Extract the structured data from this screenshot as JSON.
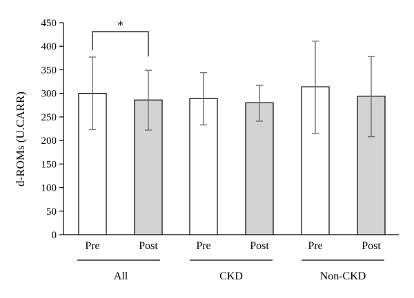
{
  "chart_data": {
    "type": "bar",
    "ylabel": "d-ROMs (U.CARR)",
    "xlabel": "",
    "ylim": [
      0,
      450
    ],
    "yticks": [
      0,
      50,
      100,
      150,
      200,
      250,
      300,
      350,
      400,
      450
    ],
    "grid": false,
    "groups": [
      "All",
      "CKD",
      "Non-CKD"
    ],
    "categories": [
      "Pre",
      "Post"
    ],
    "series": [
      {
        "group": "All",
        "bars": [
          {
            "label": "Pre",
            "value": 300,
            "err_low": 223,
            "err_high": 377,
            "fill": "#ffffff"
          },
          {
            "label": "Post",
            "value": 286,
            "err_low": 222,
            "err_high": 349,
            "fill": "#d3d3d3"
          }
        ]
      },
      {
        "group": "CKD",
        "bars": [
          {
            "label": "Pre",
            "value": 289,
            "err_low": 233,
            "err_high": 344,
            "fill": "#ffffff"
          },
          {
            "label": "Post",
            "value": 280,
            "err_low": 241,
            "err_high": 317,
            "fill": "#d3d3d3"
          }
        ]
      },
      {
        "group": "Non-CKD",
        "bars": [
          {
            "label": "Pre",
            "value": 314,
            "err_low": 215,
            "err_high": 411,
            "fill": "#ffffff"
          },
          {
            "label": "Post",
            "value": 294,
            "err_low": 208,
            "err_high": 378,
            "fill": "#d3d3d3"
          }
        ]
      }
    ],
    "annotations": [
      {
        "type": "significance",
        "text": "*",
        "group": "All",
        "from": "Pre",
        "to": "Post"
      }
    ]
  }
}
